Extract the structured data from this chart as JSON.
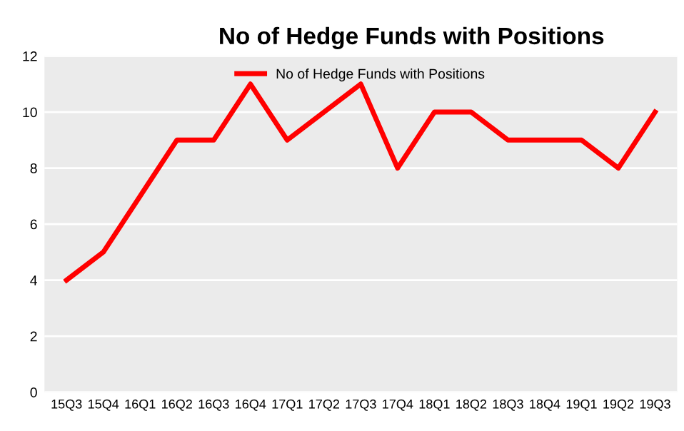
{
  "chart_data": {
    "type": "line",
    "title": "No of Hedge Funds with Positions",
    "categories": [
      "15Q3",
      "15Q4",
      "16Q1",
      "16Q2",
      "16Q3",
      "16Q4",
      "17Q1",
      "17Q2",
      "17Q3",
      "17Q4",
      "18Q1",
      "18Q2",
      "18Q3",
      "18Q4",
      "19Q1",
      "19Q2",
      "19Q3"
    ],
    "series": [
      {
        "name": "No of Hedge Funds with Positions",
        "color": "#ff0000",
        "values": [
          4,
          5,
          7,
          9,
          9,
          11,
          9,
          10,
          11,
          8,
          10,
          10,
          9,
          9,
          9,
          8,
          10
        ]
      }
    ],
    "ylim": [
      0,
      12
    ],
    "yticks": [
      0,
      2,
      4,
      6,
      8,
      10,
      12
    ],
    "grid": "y",
    "legend": "top",
    "marker": "none",
    "line_style": "solid"
  }
}
